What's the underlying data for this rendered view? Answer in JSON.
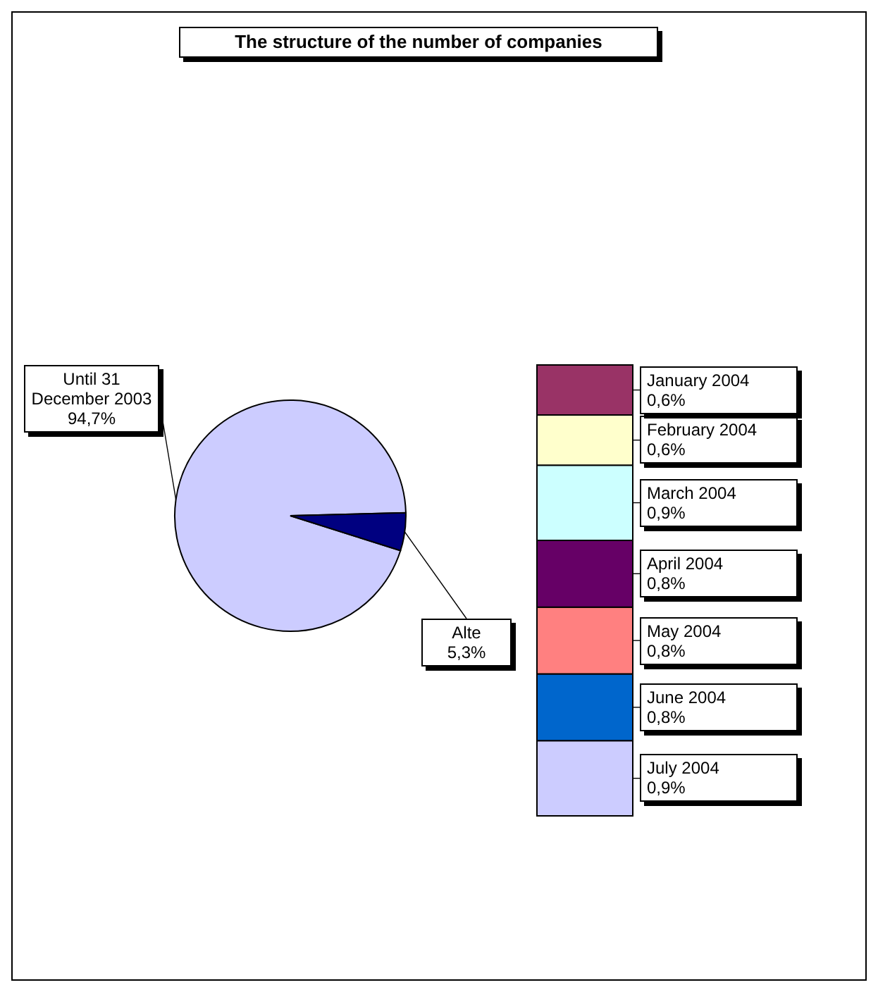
{
  "chart_data": [
    {
      "type": "pie",
      "title": "The structure of the number of companies",
      "categories": [
        "Until 31 December 2003",
        "Alte"
      ],
      "values": [
        94.7,
        5.3
      ],
      "colors": [
        "#ccccff",
        "#000080"
      ],
      "value_labels": [
        "94,7%",
        "5,3%"
      ]
    },
    {
      "type": "bar",
      "stacked": true,
      "legend": "right",
      "categories": [
        null
      ],
      "series": [
        {
          "name": "July 2004",
          "color": "#ccccff",
          "values": [
            0.9
          ],
          "value_labels": [
            "0,9%"
          ]
        },
        {
          "name": "June 2004",
          "color": "#0066cc",
          "values": [
            0.8
          ],
          "value_labels": [
            "0,8%"
          ]
        },
        {
          "name": "May 2004",
          "color": "#ff8080",
          "values": [
            0.8
          ],
          "value_labels": [
            "0,8%"
          ]
        },
        {
          "name": "April 2004",
          "color": "#660066",
          "values": [
            0.8
          ],
          "value_labels": [
            "0,8%"
          ]
        },
        {
          "name": "March 2004",
          "color": "#ccffff",
          "values": [
            0.9
          ],
          "value_labels": [
            "0,9%"
          ]
        },
        {
          "name": "February 2004",
          "color": "#ffffcc",
          "values": [
            0.6
          ],
          "value_labels": [
            "0,6%"
          ]
        },
        {
          "name": "January 2004",
          "color": "#993366",
          "values": [
            0.6
          ],
          "value_labels": [
            "0,6%"
          ]
        }
      ]
    }
  ]
}
